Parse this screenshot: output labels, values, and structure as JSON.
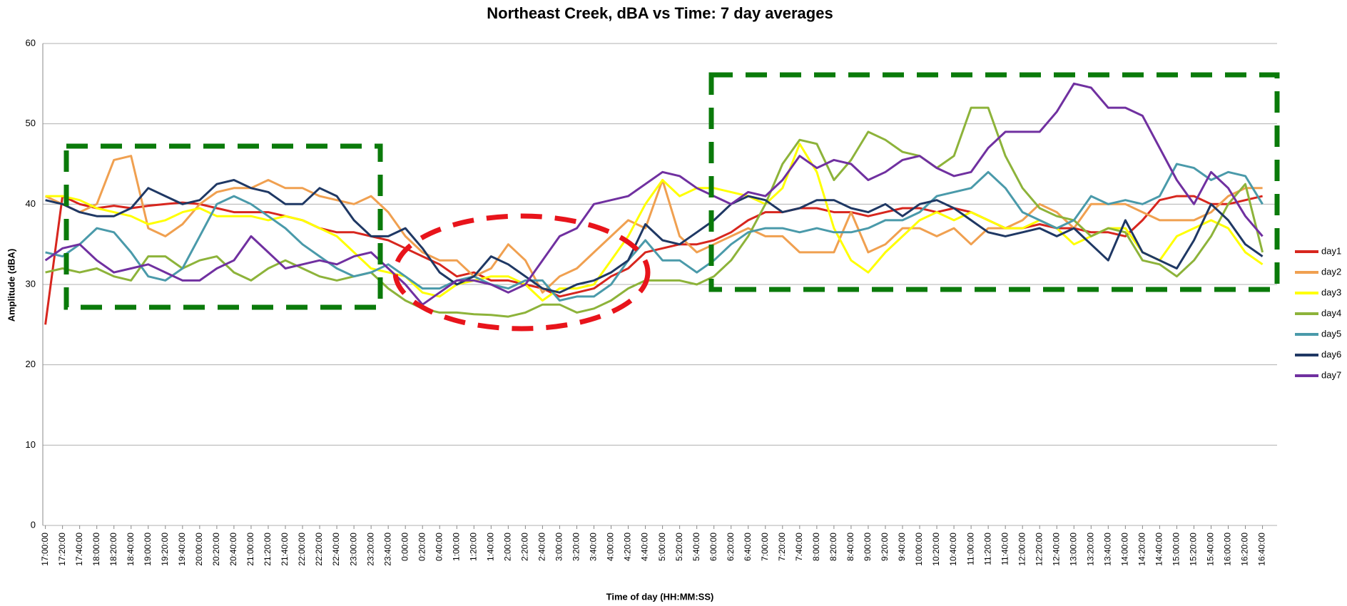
{
  "chart_data": {
    "type": "line",
    "title": "Northeast Creek, dBA vs Time: 7 day averages",
    "x_label": "Time of day (HH:MM:SS)",
    "y_label": "Amplitude (dBA)",
    "categories": [
      "17:00:00",
      "17:20:00",
      "17:40:00",
      "18:00:00",
      "18:20:00",
      "18:40:00",
      "19:00:00",
      "19:20:00",
      "19:40:00",
      "20:00:00",
      "20:20:00",
      "20:40:00",
      "21:00:00",
      "21:20:00",
      "21:40:00",
      "22:00:00",
      "22:20:00",
      "22:40:00",
      "23:00:00",
      "23:20:00",
      "23:40:00",
      "0:00:00",
      "0:20:00",
      "0:40:00",
      "1:00:00",
      "1:20:00",
      "1:40:00",
      "2:00:00",
      "2:20:00",
      "2:40:00",
      "3:00:00",
      "3:20:00",
      "3:40:00",
      "4:00:00",
      "4:20:00",
      "4:40:00",
      "5:00:00",
      "5:20:00",
      "5:40:00",
      "6:00:00",
      "6:20:00",
      "6:40:00",
      "7:00:00",
      "7:20:00",
      "7:40:00",
      "8:00:00",
      "8:20:00",
      "8:40:00",
      "9:00:00",
      "9:20:00",
      "9:40:00",
      "10:00:00",
      "10:20:00",
      "10:40:00",
      "11:00:00",
      "11:20:00",
      "11:40:00",
      "12:00:00",
      "12:20:00",
      "12:40:00",
      "13:00:00",
      "13:20:00",
      "13:40:00",
      "14:00:00",
      "14:20:00",
      "14:40:00",
      "15:00:00",
      "15:20:00",
      "15:40:00",
      "16:00:00",
      "16:20:00",
      "16:40:00"
    ],
    "ylim": [
      0,
      60
    ],
    "yticks": [
      0,
      10,
      20,
      30,
      40,
      50,
      60
    ],
    "grid": true,
    "legend": "right",
    "series": [
      {
        "name": "day1",
        "color": "#d7261e",
        "values": [
          25,
          41,
          40,
          39.5,
          39.8,
          39.5,
          39.8,
          40,
          40.2,
          40,
          39.5,
          39,
          39,
          39,
          38.5,
          38,
          37,
          36.5,
          36.5,
          36,
          35.5,
          34.5,
          33.5,
          32.5,
          31,
          31.5,
          30.5,
          30.5,
          30,
          29.5,
          28.5,
          29,
          29.5,
          31,
          32,
          34,
          34.5,
          35,
          35,
          35.5,
          36.5,
          38,
          39,
          39,
          39.5,
          39.5,
          39,
          39,
          38.5,
          39,
          39.5,
          39.5,
          39,
          39.5,
          39,
          38,
          37,
          37,
          37.5,
          37,
          37,
          36.5,
          36.5,
          36,
          38,
          40.5,
          41,
          41,
          40,
          40,
          40.5,
          41
        ]
      },
      {
        "name": "day2",
        "color": "#f0a050",
        "values": [
          41,
          40,
          39,
          40,
          45.5,
          46,
          37,
          36,
          37.5,
          40,
          41.5,
          42,
          42,
          43,
          42,
          42,
          41,
          40.5,
          40,
          41,
          39,
          36,
          34,
          33,
          33,
          31,
          32,
          35,
          33,
          29,
          31,
          32,
          34,
          36,
          38,
          37,
          43,
          36,
          34,
          35,
          36,
          37,
          36,
          36,
          34,
          34,
          34,
          39,
          34,
          35,
          37,
          37,
          36,
          37,
          35,
          37,
          37,
          38,
          40,
          39,
          37,
          40,
          40,
          40,
          39,
          38,
          38,
          38,
          39,
          41,
          42,
          42
        ]
      },
      {
        "name": "day3",
        "color": "#ffff00",
        "values": [
          41,
          41,
          40.5,
          39.5,
          39,
          38.5,
          37.5,
          38,
          39,
          39.5,
          38.5,
          38.5,
          38.5,
          38,
          38.5,
          38,
          37,
          36,
          34,
          32,
          31.5,
          31,
          29,
          28.5,
          30,
          30.5,
          31,
          31,
          30,
          28,
          29.5,
          29.5,
          30,
          33,
          36,
          40,
          43,
          41,
          42,
          42,
          41.5,
          41,
          40,
          42,
          47.5,
          44,
          37,
          33,
          31.5,
          34,
          36,
          38,
          39,
          38,
          39,
          38,
          37,
          37,
          38,
          37,
          35,
          36,
          37,
          37,
          34,
          33,
          36,
          37,
          38,
          37,
          34,
          32.5
        ]
      },
      {
        "name": "day4",
        "color": "#8db33a",
        "values": [
          31.5,
          32,
          31.5,
          32,
          31,
          30.5,
          33.5,
          33.5,
          32,
          33,
          33.5,
          31.5,
          30.5,
          32,
          33,
          32,
          31,
          30.5,
          31,
          31.5,
          29.5,
          28,
          27,
          26.5,
          26.5,
          26.3,
          26.2,
          26,
          26.5,
          27.5,
          27.5,
          26.5,
          27,
          28,
          29.5,
          30.5,
          30.5,
          30.5,
          30,
          31,
          33,
          36,
          40,
          45,
          48,
          47.5,
          43,
          45.5,
          49,
          48,
          46.5,
          46,
          44.5,
          46,
          52,
          52,
          46,
          42,
          39.5,
          38.5,
          38,
          36,
          37,
          36.5,
          33,
          32.5,
          31,
          33,
          36,
          40,
          42.5,
          34
        ]
      },
      {
        "name": "day5",
        "color": "#4a9aaa",
        "values": [
          34,
          33.5,
          35,
          37,
          36.5,
          34,
          31,
          30.5,
          32,
          36,
          40,
          41,
          40,
          38.5,
          37,
          35,
          33.5,
          32,
          31,
          31.5,
          32.5,
          31,
          29.5,
          29.5,
          30.5,
          31,
          30,
          29.5,
          30.5,
          30.5,
          28,
          28.5,
          28.5,
          30,
          33,
          35.5,
          33,
          33,
          31.5,
          33,
          35,
          36.5,
          37,
          37,
          36.5,
          37,
          36.5,
          36.5,
          37,
          38,
          38,
          39,
          41,
          41.5,
          42,
          44,
          42,
          39,
          38,
          37,
          38,
          41,
          40,
          40.5,
          40,
          41,
          45,
          44.5,
          43,
          44,
          43.5,
          40
        ]
      },
      {
        "name": "day6",
        "color": "#1f3864",
        "values": [
          40.5,
          40,
          39,
          38.5,
          38.5,
          39.5,
          42,
          41,
          40,
          40.5,
          42.5,
          43,
          42,
          41.5,
          40,
          40,
          42,
          41,
          38,
          36,
          36,
          37,
          34.5,
          31.5,
          30,
          31,
          33.5,
          32.5,
          31,
          29.5,
          29,
          30,
          30.5,
          31.5,
          33,
          37.5,
          35.5,
          35,
          36.5,
          38,
          40,
          41,
          40.5,
          39,
          39.5,
          40.5,
          40.5,
          39.5,
          39,
          40,
          38.5,
          40,
          40.5,
          39.5,
          38,
          36.5,
          36,
          36.5,
          37,
          36,
          37,
          35,
          33,
          38,
          34,
          33,
          32,
          35.5,
          40,
          38,
          35,
          33.5
        ]
      },
      {
        "name": "day7",
        "color": "#7030a0",
        "values": [
          33,
          34.5,
          35,
          33,
          31.5,
          32,
          32.5,
          31.5,
          30.5,
          30.5,
          32,
          33,
          36,
          34,
          32,
          32.5,
          33,
          32.5,
          33.5,
          34,
          32,
          30,
          27.5,
          29,
          30.5,
          30.5,
          30,
          29,
          30,
          33,
          36,
          37,
          40,
          40.5,
          41,
          42.5,
          44,
          43.5,
          42,
          41,
          40,
          41.5,
          41,
          43,
          46,
          44.5,
          45.5,
          45,
          43,
          44,
          45.5,
          46,
          44.5,
          43.5,
          44,
          47,
          49,
          49,
          49,
          51.5,
          55,
          54.5,
          52,
          52,
          51,
          47,
          43,
          40,
          44,
          42,
          38.5,
          36
        ]
      }
    ]
  }
}
